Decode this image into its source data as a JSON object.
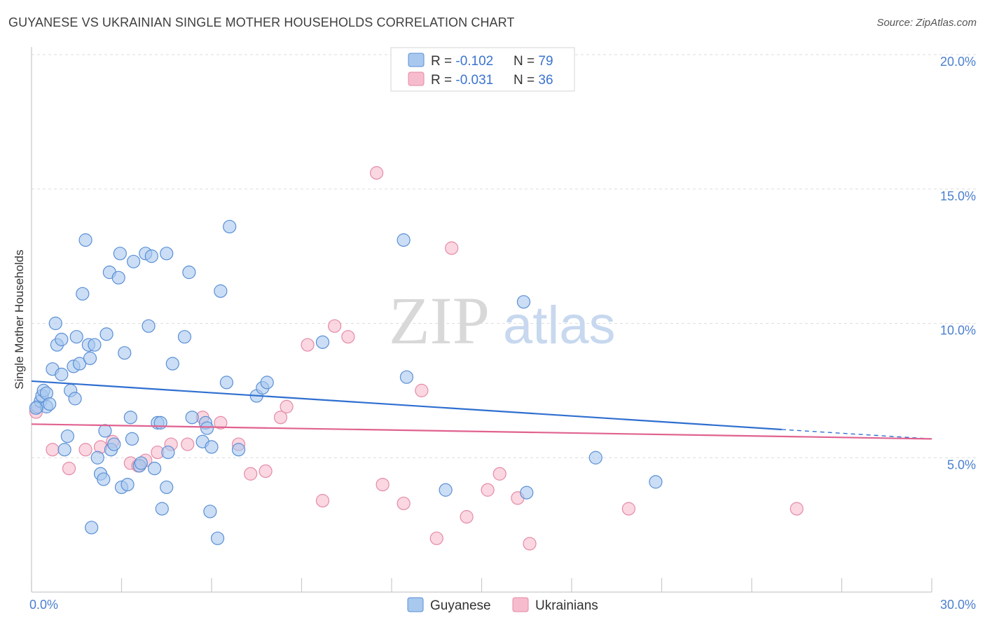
{
  "header": {
    "title": "GUYANESE VS UKRAINIAN SINGLE MOTHER HOUSEHOLDS CORRELATION CHART",
    "source": "Source: ZipAtlas.com"
  },
  "watermark": {
    "zip": "ZIP",
    "atlas": "atlas"
  },
  "legend_top": {
    "rows": [
      {
        "r_label": "R = ",
        "r_value": "-0.102",
        "n_label": "N = ",
        "n_value": "79"
      },
      {
        "r_label": "R = ",
        "r_value": "-0.031",
        "n_label": "N = ",
        "n_value": "36"
      }
    ]
  },
  "legend_bottom": {
    "items": [
      "Guyanese",
      "Ukrainians"
    ]
  },
  "colors": {
    "guyanese_fill": "#a9c8ee",
    "guyanese_stroke": "#5a8fd6",
    "guyanese_line": "#2f6fd0",
    "ukrainian_fill": "#f6bccd",
    "ukrainian_stroke": "#e58aa7",
    "ukrainian_line": "#e0628f",
    "accent_text": "#3a74d0"
  },
  "chart_data": {
    "type": "scatter",
    "title": "GUYANESE VS UKRAINIAN SINGLE MOTHER HOUSEHOLDS CORRELATION CHART",
    "xlabel": "",
    "ylabel": "Single Mother Households",
    "xlim": [
      0,
      30
    ],
    "ylim": [
      0,
      20
    ],
    "x_tick_labels": [
      "0.0%",
      "30.0%"
    ],
    "y_tick_labels": [
      "5.0%",
      "10.0%",
      "15.0%",
      "20.0%"
    ],
    "y_ticks": [
      5,
      10,
      15,
      20
    ],
    "series": [
      {
        "name": "Guyanese",
        "R": -0.102,
        "N": 79,
        "trend": {
          "x": [
            0,
            25
          ],
          "y": [
            7.85,
            6.05
          ],
          "dashed_to": [
            30,
            5.7
          ]
        },
        "points": [
          [
            0.2,
            6.9
          ],
          [
            0.3,
            7.1
          ],
          [
            0.35,
            7.3
          ],
          [
            0.4,
            7.5
          ],
          [
            0.5,
            7.4
          ],
          [
            0.5,
            6.9
          ],
          [
            0.6,
            7.0
          ],
          [
            0.7,
            8.3
          ],
          [
            0.8,
            10.0
          ],
          [
            0.85,
            9.2
          ],
          [
            1.0,
            8.1
          ],
          [
            1.0,
            9.4
          ],
          [
            1.1,
            5.3
          ],
          [
            1.2,
            5.8
          ],
          [
            1.3,
            7.5
          ],
          [
            1.4,
            8.4
          ],
          [
            1.45,
            7.2
          ],
          [
            1.5,
            9.5
          ],
          [
            1.6,
            8.5
          ],
          [
            1.7,
            11.1
          ],
          [
            1.8,
            13.1
          ],
          [
            1.9,
            9.2
          ],
          [
            1.95,
            8.7
          ],
          [
            2.0,
            2.4
          ],
          [
            2.1,
            9.2
          ],
          [
            2.2,
            5.0
          ],
          [
            2.3,
            4.4
          ],
          [
            2.4,
            4.2
          ],
          [
            2.45,
            6.0
          ],
          [
            2.5,
            9.6
          ],
          [
            2.6,
            11.9
          ],
          [
            2.65,
            5.3
          ],
          [
            2.75,
            5.5
          ],
          [
            2.9,
            11.7
          ],
          [
            2.95,
            12.6
          ],
          [
            3.0,
            3.9
          ],
          [
            3.1,
            8.9
          ],
          [
            3.2,
            4.0
          ],
          [
            3.3,
            6.5
          ],
          [
            3.35,
            5.7
          ],
          [
            3.4,
            12.3
          ],
          [
            3.6,
            4.7
          ],
          [
            3.65,
            4.8
          ],
          [
            3.8,
            12.6
          ],
          [
            3.9,
            9.9
          ],
          [
            4.0,
            12.5
          ],
          [
            4.1,
            4.6
          ],
          [
            4.2,
            6.3
          ],
          [
            4.3,
            6.3
          ],
          [
            4.35,
            3.1
          ],
          [
            4.5,
            12.6
          ],
          [
            4.5,
            3.9
          ],
          [
            4.55,
            5.2
          ],
          [
            4.7,
            8.5
          ],
          [
            5.1,
            9.5
          ],
          [
            5.25,
            11.9
          ],
          [
            5.35,
            6.5
          ],
          [
            5.7,
            5.6
          ],
          [
            5.8,
            6.3
          ],
          [
            5.85,
            6.1
          ],
          [
            5.95,
            3.0
          ],
          [
            6.0,
            5.4
          ],
          [
            6.2,
            2.0
          ],
          [
            6.3,
            11.2
          ],
          [
            6.5,
            7.8
          ],
          [
            6.6,
            13.6
          ],
          [
            6.9,
            5.3
          ],
          [
            7.5,
            7.3
          ],
          [
            7.7,
            7.6
          ],
          [
            7.85,
            7.8
          ],
          [
            9.7,
            9.3
          ],
          [
            12.4,
            13.1
          ],
          [
            12.5,
            8.0
          ],
          [
            13.8,
            3.8
          ],
          [
            16.4,
            10.8
          ],
          [
            16.5,
            3.7
          ],
          [
            18.8,
            5.0
          ],
          [
            20.8,
            4.1
          ],
          [
            0.15,
            6.85
          ]
        ]
      },
      {
        "name": "Ukrainians",
        "R": -0.031,
        "N": 36,
        "trend": {
          "x": [
            0,
            30
          ],
          "y": [
            6.25,
            5.7
          ]
        },
        "points": [
          [
            0.15,
            6.7
          ],
          [
            0.7,
            5.3
          ],
          [
            1.25,
            4.6
          ],
          [
            1.8,
            5.3
          ],
          [
            2.3,
            5.4
          ],
          [
            2.7,
            5.6
          ],
          [
            3.3,
            4.8
          ],
          [
            3.55,
            4.7
          ],
          [
            3.8,
            4.9
          ],
          [
            4.2,
            5.2
          ],
          [
            4.65,
            5.5
          ],
          [
            5.2,
            5.5
          ],
          [
            5.7,
            6.5
          ],
          [
            6.3,
            6.3
          ],
          [
            6.9,
            5.5
          ],
          [
            7.3,
            4.4
          ],
          [
            7.8,
            4.5
          ],
          [
            8.3,
            6.5
          ],
          [
            8.5,
            6.9
          ],
          [
            9.2,
            9.2
          ],
          [
            9.7,
            3.4
          ],
          [
            10.1,
            9.9
          ],
          [
            10.55,
            9.5
          ],
          [
            11.7,
            4.0
          ],
          [
            11.5,
            15.6
          ],
          [
            12.4,
            3.3
          ],
          [
            13.0,
            7.5
          ],
          [
            13.5,
            2.0
          ],
          [
            14.0,
            12.8
          ],
          [
            14.5,
            2.8
          ],
          [
            15.2,
            3.8
          ],
          [
            15.6,
            4.4
          ],
          [
            16.2,
            3.5
          ],
          [
            16.6,
            1.8
          ],
          [
            19.9,
            3.1
          ],
          [
            25.5,
            3.1
          ]
        ]
      }
    ]
  }
}
